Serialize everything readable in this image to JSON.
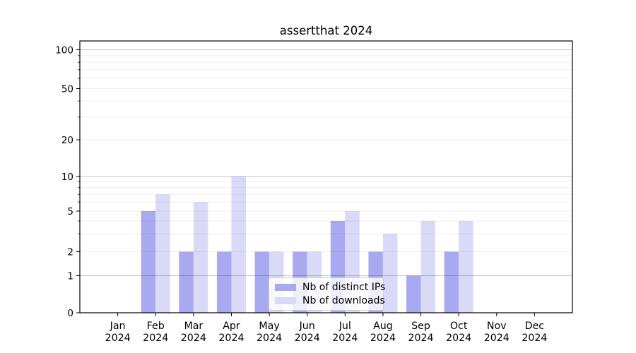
{
  "chart_data": {
    "type": "bar",
    "title": "assertthat 2024",
    "categories": [
      "Jan",
      "Feb",
      "Mar",
      "Apr",
      "May",
      "Jun",
      "Jul",
      "Aug",
      "Sep",
      "Oct",
      "Nov",
      "Dec"
    ],
    "x_year": "2024",
    "series": [
      {
        "name": "Nb of distinct IPs",
        "color": "#a9a9f1",
        "values": [
          0,
          5,
          2,
          2,
          2,
          2,
          4,
          2,
          1,
          2,
          0,
          0
        ]
      },
      {
        "name": "Nb of downloads",
        "color": "#dadaf8",
        "values": [
          0,
          7,
          6,
          10,
          2,
          2,
          5,
          3,
          4,
          4,
          0,
          0
        ]
      }
    ],
    "yaxis": {
      "scale": "log-like",
      "ylim": [
        0,
        110
      ],
      "tick_values": [
        0,
        1,
        2,
        5,
        10,
        20,
        50,
        100
      ],
      "tick_labels": [
        "0",
        "1",
        "2",
        "5",
        "10",
        "20",
        "50",
        "100"
      ],
      "major_gridlines": [
        1,
        10,
        100
      ],
      "minor_gridlines": [
        2,
        3,
        4,
        5,
        6,
        7,
        8,
        9,
        20,
        30,
        40,
        50,
        60,
        70,
        80,
        90
      ]
    },
    "xlabel": "",
    "ylabel": "",
    "grid": true,
    "legend": {
      "position": "lower-center",
      "entries": [
        "Nb of distinct IPs",
        "Nb of downloads"
      ]
    },
    "colors": {
      "axis": "#000000",
      "text": "#000000",
      "grid_major": "rgba(0,0,0,0.23)",
      "grid_minor": "rgba(0,0,0,0.07)",
      "legend_border": "#cccccc",
      "legend_bg": "rgba(255,255,255,0.8)",
      "background": "#ffffff"
    }
  }
}
